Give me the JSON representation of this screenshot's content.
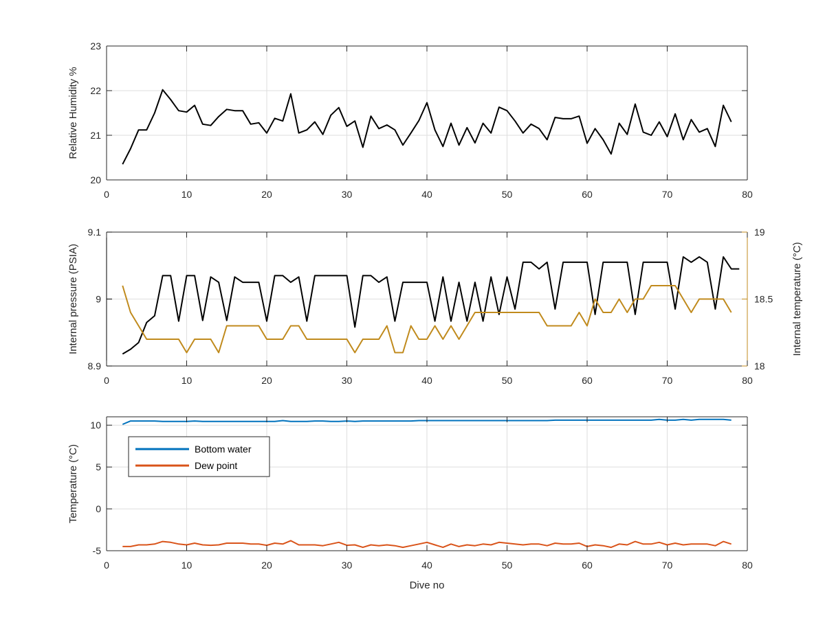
{
  "chart_data": [
    {
      "type": "line",
      "ylabel": "Relative Humidity %",
      "xlim": [
        0,
        80
      ],
      "ylim": [
        20,
        23
      ],
      "xticks": [
        0,
        10,
        20,
        30,
        40,
        50,
        60,
        70,
        80
      ],
      "yticks": [
        20,
        21,
        22,
        23
      ],
      "grid": true,
      "series": [
        {
          "color": "#000000",
          "x": [
            2,
            3,
            4,
            5,
            6,
            7,
            8,
            9,
            10,
            11,
            12,
            13,
            14,
            15,
            16,
            17,
            18,
            19,
            20,
            21,
            22,
            23,
            24,
            25,
            26,
            27,
            28,
            29,
            30,
            31,
            32,
            33,
            34,
            35,
            36,
            37,
            38,
            39,
            40,
            41,
            42,
            43,
            44,
            45,
            46,
            47,
            48,
            49,
            50,
            51,
            52,
            53,
            54,
            55,
            56,
            57,
            58,
            59,
            60,
            61,
            62,
            63,
            64,
            65,
            66,
            67,
            68,
            69,
            70,
            71,
            72,
            73,
            74,
            75,
            76,
            77,
            78
          ],
          "values": [
            20.35,
            20.7,
            21.12,
            21.12,
            21.5,
            22.02,
            21.8,
            21.55,
            21.52,
            21.67,
            21.25,
            21.22,
            21.42,
            21.58,
            21.55,
            21.55,
            21.25,
            21.28,
            21.05,
            21.38,
            21.32,
            21.93,
            21.05,
            21.12,
            21.3,
            21.02,
            21.45,
            21.62,
            21.2,
            21.32,
            20.73,
            21.43,
            21.15,
            21.23,
            21.12,
            20.78,
            21.05,
            21.33,
            21.73,
            21.12,
            20.75,
            21.27,
            20.78,
            21.17,
            20.83,
            21.27,
            21.05,
            21.63,
            21.55,
            21.32,
            21.05,
            21.25,
            21.15,
            20.9,
            21.4,
            21.37,
            21.37,
            21.43,
            20.82,
            21.15,
            20.9,
            20.58,
            21.27,
            21.02,
            21.7,
            21.07,
            21.0,
            21.3,
            20.97,
            21.48,
            20.9,
            21.35,
            21.07,
            21.15,
            20.75,
            21.67,
            21.3
          ]
        }
      ]
    },
    {
      "type": "line",
      "ylabel": "Internal pressure (PSIA)",
      "y2label": "Internal temperature (°C)",
      "xlim": [
        0,
        80
      ],
      "ylim": [
        8.9,
        9.1
      ],
      "y2lim": [
        18,
        19
      ],
      "xticks": [
        0,
        10,
        20,
        30,
        40,
        50,
        60,
        70,
        80
      ],
      "yticks": [
        8.9,
        9,
        9.1
      ],
      "ytick_labels": [
        "8.9",
        "9",
        "9.1"
      ],
      "y2ticks": [
        18,
        18.5,
        19
      ],
      "y2tick_labels": [
        "18",
        "18.5",
        "19"
      ],
      "left_axis_color": "#000000",
      "right_axis_color": "#c08a1c",
      "grid": true,
      "series": [
        {
          "axis": "left",
          "color": "#000000",
          "points": [
            [
              2,
              8.918
            ],
            [
              3,
              8.925
            ],
            [
              4,
              8.935
            ],
            [
              5,
              8.965
            ],
            [
              6,
              8.975
            ],
            [
              7,
              9.035
            ],
            [
              8,
              9.035
            ],
            [
              9,
              8.967
            ],
            [
              10,
              9.035
            ],
            [
              11,
              9.035
            ],
            [
              12,
              8.968
            ],
            [
              13,
              9.033
            ],
            [
              14,
              9.025
            ],
            [
              15,
              8.968
            ],
            [
              16,
              9.033
            ],
            [
              17,
              9.025
            ],
            [
              18,
              9.025
            ],
            [
              19,
              9.025
            ],
            [
              20,
              8.967
            ],
            [
              21,
              9.035
            ],
            [
              22,
              9.035
            ],
            [
              23,
              9.025
            ],
            [
              24,
              9.033
            ],
            [
              25,
              8.967
            ],
            [
              26,
              9.035
            ],
            [
              27,
              9.035
            ],
            [
              28,
              9.035
            ],
            [
              29,
              9.035
            ],
            [
              30,
              9.035
            ],
            [
              31,
              8.958
            ],
            [
              32,
              9.035
            ],
            [
              33,
              9.035
            ],
            [
              34,
              9.025
            ],
            [
              35,
              9.033
            ],
            [
              36,
              8.967
            ],
            [
              37,
              9.025
            ],
            [
              38,
              9.025
            ],
            [
              39,
              9.025
            ],
            [
              40,
              9.025
            ],
            [
              41,
              8.967
            ],
            [
              42,
              9.033
            ],
            [
              43,
              8.967
            ],
            [
              44,
              9.025
            ],
            [
              45,
              8.967
            ],
            [
              46,
              9.025
            ],
            [
              47,
              8.967
            ],
            [
              48,
              9.033
            ],
            [
              49,
              8.977
            ],
            [
              50,
              9.033
            ],
            [
              51,
              8.985
            ],
            [
              52,
              9.055
            ],
            [
              53,
              9.055
            ],
            [
              54,
              9.045
            ],
            [
              55,
              9.055
            ],
            [
              56,
              8.985
            ],
            [
              57,
              9.055
            ],
            [
              58,
              9.055
            ],
            [
              59,
              9.055
            ],
            [
              60,
              9.055
            ],
            [
              61,
              8.977
            ],
            [
              62,
              9.055
            ],
            [
              63,
              9.055
            ],
            [
              64,
              9.055
            ],
            [
              65,
              9.055
            ],
            [
              66,
              8.977
            ],
            [
              67,
              9.055
            ],
            [
              68,
              9.055
            ],
            [
              69,
              9.055
            ],
            [
              70,
              9.055
            ],
            [
              71,
              8.985
            ],
            [
              72,
              9.063
            ],
            [
              73,
              9.055
            ],
            [
              74,
              9.063
            ],
            [
              75,
              9.055
            ],
            [
              76,
              8.985
            ],
            [
              77,
              9.063
            ],
            [
              78,
              9.045
            ],
            [
              79,
              9.045
            ]
          ]
        },
        {
          "axis": "right",
          "color": "#c08a1c",
          "points": [
            [
              2,
              18.6
            ],
            [
              3,
              18.4
            ],
            [
              4,
              18.3
            ],
            [
              5,
              18.2
            ],
            [
              9,
              18.2
            ],
            [
              10,
              18.1
            ],
            [
              11,
              18.2
            ],
            [
              13,
              18.2
            ],
            [
              14,
              18.1
            ],
            [
              15,
              18.3
            ],
            [
              19,
              18.3
            ],
            [
              20,
              18.2
            ],
            [
              22,
              18.2
            ],
            [
              23,
              18.3
            ],
            [
              24,
              18.3
            ],
            [
              25,
              18.2
            ],
            [
              30,
              18.2
            ],
            [
              31,
              18.1
            ],
            [
              32,
              18.2
            ],
            [
              34,
              18.2
            ],
            [
              35,
              18.3
            ],
            [
              36,
              18.1
            ],
            [
              37,
              18.1
            ],
            [
              38,
              18.3
            ],
            [
              39,
              18.2
            ],
            [
              40,
              18.2
            ],
            [
              41,
              18.3
            ],
            [
              42,
              18.2
            ],
            [
              43,
              18.3
            ],
            [
              44,
              18.2
            ],
            [
              46,
              18.4
            ],
            [
              54,
              18.4
            ],
            [
              55,
              18.3
            ],
            [
              58,
              18.3
            ],
            [
              59,
              18.4
            ],
            [
              60,
              18.3
            ],
            [
              61,
              18.5
            ],
            [
              62,
              18.4
            ],
            [
              63,
              18.4
            ],
            [
              64,
              18.5
            ],
            [
              65,
              18.4
            ],
            [
              66,
              18.5
            ],
            [
              67,
              18.5
            ],
            [
              68,
              18.6
            ],
            [
              71,
              18.6
            ],
            [
              72,
              18.5
            ],
            [
              73,
              18.4
            ],
            [
              74,
              18.5
            ],
            [
              77,
              18.5
            ],
            [
              78,
              18.4
            ]
          ]
        }
      ]
    },
    {
      "type": "line",
      "ylabel": "Temperature (°C)",
      "xlabel": "Dive no",
      "xlim": [
        0,
        80
      ],
      "ylim": [
        -5,
        11
      ],
      "xticks": [
        0,
        10,
        20,
        30,
        40,
        50,
        60,
        70,
        80
      ],
      "yticks": [
        -5,
        0,
        5,
        10
      ],
      "grid": true,
      "legend_position": "upper-left",
      "series": [
        {
          "name": "Bottom water",
          "color": "#0072bd",
          "x": [
            2,
            3,
            4,
            5,
            6,
            7,
            8,
            9,
            10,
            11,
            12,
            13,
            14,
            15,
            16,
            17,
            18,
            19,
            20,
            21,
            22,
            23,
            24,
            25,
            26,
            27,
            28,
            29,
            30,
            31,
            32,
            33,
            34,
            35,
            36,
            37,
            38,
            39,
            40,
            41,
            42,
            43,
            44,
            45,
            46,
            47,
            48,
            49,
            50,
            51,
            52,
            53,
            54,
            55,
            56,
            57,
            58,
            59,
            60,
            61,
            62,
            63,
            64,
            65,
            66,
            67,
            68,
            69,
            70,
            71,
            72,
            73,
            74,
            75,
            76,
            77,
            78
          ],
          "values": [
            10.1,
            10.5,
            10.5,
            10.5,
            10.5,
            10.45,
            10.45,
            10.45,
            10.45,
            10.5,
            10.45,
            10.45,
            10.45,
            10.45,
            10.45,
            10.45,
            10.45,
            10.45,
            10.45,
            10.45,
            10.55,
            10.45,
            10.45,
            10.45,
            10.5,
            10.5,
            10.45,
            10.45,
            10.5,
            10.45,
            10.5,
            10.5,
            10.5,
            10.5,
            10.5,
            10.5,
            10.5,
            10.55,
            10.55,
            10.55,
            10.55,
            10.55,
            10.55,
            10.55,
            10.55,
            10.55,
            10.55,
            10.55,
            10.55,
            10.55,
            10.55,
            10.55,
            10.55,
            10.55,
            10.6,
            10.6,
            10.6,
            10.6,
            10.6,
            10.6,
            10.6,
            10.6,
            10.6,
            10.6,
            10.6,
            10.6,
            10.6,
            10.7,
            10.6,
            10.6,
            10.7,
            10.6,
            10.7,
            10.7,
            10.7,
            10.7,
            10.6
          ]
        },
        {
          "name": "Dew point",
          "color": "#d95319",
          "x": [
            2,
            3,
            4,
            5,
            6,
            7,
            8,
            9,
            10,
            11,
            12,
            13,
            14,
            15,
            16,
            17,
            18,
            19,
            20,
            21,
            22,
            23,
            24,
            25,
            26,
            27,
            28,
            29,
            30,
            31,
            32,
            33,
            34,
            35,
            36,
            37,
            38,
            39,
            40,
            41,
            42,
            43,
            44,
            45,
            46,
            47,
            48,
            49,
            50,
            51,
            52,
            53,
            54,
            55,
            56,
            57,
            58,
            59,
            60,
            61,
            62,
            63,
            64,
            65,
            66,
            67,
            68,
            69,
            70,
            71,
            72,
            73,
            74,
            75,
            76,
            77,
            78
          ],
          "values": [
            -4.5,
            -4.5,
            -4.3,
            -4.3,
            -4.2,
            -3.9,
            -4.0,
            -4.2,
            -4.3,
            -4.1,
            -4.3,
            -4.35,
            -4.3,
            -4.1,
            -4.1,
            -4.1,
            -4.2,
            -4.2,
            -4.35,
            -4.1,
            -4.2,
            -3.8,
            -4.3,
            -4.3,
            -4.3,
            -4.4,
            -4.2,
            -4.0,
            -4.35,
            -4.3,
            -4.6,
            -4.3,
            -4.4,
            -4.3,
            -4.4,
            -4.6,
            -4.4,
            -4.2,
            -4.0,
            -4.3,
            -4.6,
            -4.2,
            -4.5,
            -4.3,
            -4.4,
            -4.2,
            -4.3,
            -4.0,
            -4.1,
            -4.2,
            -4.3,
            -4.2,
            -4.2,
            -4.4,
            -4.1,
            -4.2,
            -4.2,
            -4.1,
            -4.5,
            -4.3,
            -4.4,
            -4.6,
            -4.2,
            -4.3,
            -3.9,
            -4.2,
            -4.2,
            -4.0,
            -4.3,
            -4.1,
            -4.3,
            -4.2,
            -4.2,
            -4.2,
            -4.4,
            -3.9,
            -4.2
          ]
        }
      ]
    }
  ]
}
